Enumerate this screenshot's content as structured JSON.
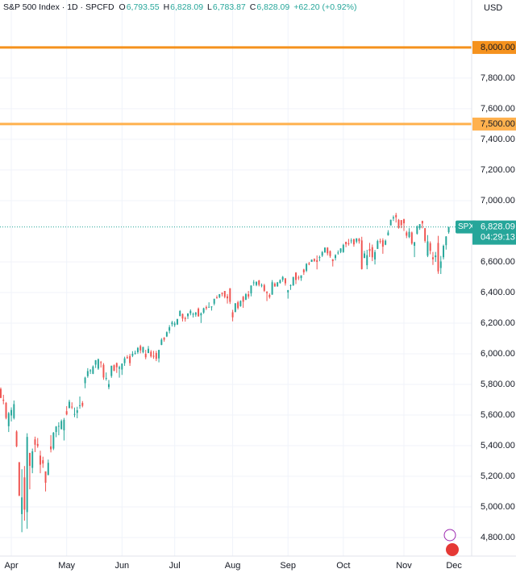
{
  "chart_data": {
    "type": "candlestick",
    "header": {
      "title": "S&P 500 Index · 1D · SPCFD",
      "fields": [
        {
          "key": "O",
          "label": "6,793.55"
        },
        {
          "key": "H",
          "label": "6,828.09"
        },
        {
          "key": "L",
          "label": "6,783.87"
        },
        {
          "key": "C",
          "label": "6,828.09"
        }
      ],
      "change": "+62.20 (+0.92%)"
    },
    "currency": "USD",
    "up_color": "#26a69a",
    "down_color": "#ef5350",
    "grid": true,
    "xlim": [
      -0.3,
      178.7
    ],
    "xticks": [
      {
        "value": 4,
        "label": "Apr"
      },
      {
        "value": 25,
        "label": "May"
      },
      {
        "value": 46,
        "label": "Jun"
      },
      {
        "value": 66,
        "label": "Jul"
      },
      {
        "value": 88,
        "label": "Aug"
      },
      {
        "value": 109,
        "label": "Sep"
      },
      {
        "value": 130,
        "label": "Oct"
      },
      {
        "value": 153,
        "label": "Nov"
      },
      {
        "value": 172,
        "label": "Dec"
      }
    ],
    "ylim": [
      4679,
      8310
    ],
    "yticks": [
      {
        "value": 4800,
        "label": "4,800.00"
      },
      {
        "value": 5000,
        "label": "5,000.00"
      },
      {
        "value": 5200,
        "label": "5,200.00"
      },
      {
        "value": 5400,
        "label": "5,400.00"
      },
      {
        "value": 5600,
        "label": "5,600.00"
      },
      {
        "value": 5800,
        "label": "5,800.00"
      },
      {
        "value": 6000,
        "label": "6,000.00"
      },
      {
        "value": 6200,
        "label": "6,200.00"
      },
      {
        "value": 6400,
        "label": "6,400.00"
      },
      {
        "value": 6600,
        "label": "6,600.00"
      },
      {
        "value": 7000,
        "label": "7,000.00"
      },
      {
        "value": 7200,
        "label": "7,200.00"
      },
      {
        "value": 7400,
        "label": "7,400.00"
      },
      {
        "value": 7600,
        "label": "7,600.00"
      },
      {
        "value": 7800,
        "label": "7,800.00"
      }
    ],
    "hlines": [
      {
        "value": 8000,
        "label": "8,000.00",
        "color": "#f5921e"
      },
      {
        "value": 7500,
        "label": "7,500.00",
        "color": "#ffb14e"
      }
    ],
    "last_price": {
      "name": "SPX",
      "value": 6828.09,
      "label": "6,828.09",
      "countdown": "04:29:13",
      "color": "#26a69a"
    },
    "ohlc": [
      [
        5770,
        5780,
        5710,
        5712
      ],
      [
        5700,
        5732,
        5670,
        5693
      ],
      [
        5679,
        5685,
        5572,
        5581
      ],
      [
        5527,
        5620,
        5489,
        5612
      ],
      [
        5597,
        5650,
        5558,
        5633
      ],
      [
        5580,
        5695,
        5571,
        5671
      ],
      [
        5492,
        5500,
        5390,
        5396
      ],
      [
        5292,
        5293,
        5070,
        5074
      ],
      [
        4953,
        5246,
        4835,
        5062
      ],
      [
        5193,
        5267,
        4910,
        4982
      ],
      [
        4966,
        5481,
        4857,
        5457
      ],
      [
        5353,
        5353,
        5115,
        5268
      ],
      [
        5255,
        5381,
        5220,
        5363
      ],
      [
        5441,
        5459,
        5358,
        5406
      ],
      [
        5411,
        5450,
        5386,
        5397
      ],
      [
        5335,
        5367,
        5220,
        5276
      ],
      [
        5305,
        5328,
        5255,
        5283
      ],
      [
        5232,
        5232,
        5101,
        5158
      ],
      [
        5208,
        5309,
        5207,
        5288
      ],
      [
        5395,
        5469,
        5356,
        5376
      ],
      [
        5381,
        5489,
        5371,
        5485
      ],
      [
        5489,
        5528,
        5455,
        5525
      ],
      [
        5529,
        5553,
        5468,
        5529
      ],
      [
        5508,
        5571,
        5505,
        5561
      ],
      [
        5500,
        5581,
        5434,
        5569
      ],
      [
        5625,
        5658,
        5598,
        5604
      ],
      [
        5645,
        5700,
        5644,
        5687
      ],
      [
        5655,
        5683,
        5639,
        5650
      ],
      [
        5605,
        5649,
        5586,
        5607
      ],
      [
        5614,
        5654,
        5579,
        5631
      ],
      [
        5663,
        5721,
        5641,
        5664
      ],
      [
        5679,
        5691,
        5650,
        5660
      ],
      [
        5808,
        5850,
        5775,
        5844
      ],
      [
        5854,
        5906,
        5843,
        5887
      ],
      [
        5886,
        5900,
        5868,
        5892
      ],
      [
        5869,
        5924,
        5867,
        5917
      ],
      [
        5929,
        5959,
        5907,
        5958
      ],
      [
        5903,
        5969,
        5895,
        5964
      ],
      [
        5945,
        5953,
        5910,
        5940
      ],
      [
        5928,
        5939,
        5830,
        5845
      ],
      [
        5841,
        5878,
        5825,
        5842
      ],
      [
        5782,
        5829,
        5768,
        5802
      ],
      [
        5855,
        5922,
        5843,
        5922
      ],
      [
        5925,
        5930,
        5886,
        5889
      ],
      [
        5939,
        5943,
        5875,
        5912
      ],
      [
        5903,
        5922,
        5844,
        5912
      ],
      [
        5897,
        5937,
        5862,
        5936
      ],
      [
        5939,
        5981,
        5921,
        5970
      ],
      [
        5978,
        5991,
        5967,
        5971
      ],
      [
        5985,
        5999,
        5921,
        5939
      ],
      [
        5987,
        6017,
        5978,
        6000
      ],
      [
        6005,
        6021,
        5994,
        6006
      ],
      [
        6010,
        6044,
        5999,
        6038
      ],
      [
        6050,
        6059,
        6003,
        6022
      ],
      [
        6010,
        6045,
        6003,
        6045
      ],
      [
        6000,
        6026,
        5964,
        5977
      ],
      [
        6005,
        6051,
        6004,
        6033
      ],
      [
        6013,
        6024,
        5975,
        5983
      ],
      [
        5987,
        6019,
        5967,
        5981
      ],
      [
        6005,
        6019,
        5952,
        5967
      ],
      [
        5970,
        6026,
        5944,
        6025
      ],
      [
        6058,
        6102,
        6056,
        6092
      ],
      [
        6104,
        6109,
        6079,
        6092
      ],
      [
        6113,
        6146,
        6109,
        6141
      ],
      [
        6151,
        6187,
        6133,
        6173
      ],
      [
        6193,
        6215,
        6178,
        6205
      ],
      [
        6187,
        6211,
        6175,
        6198
      ],
      [
        6191,
        6228,
        6188,
        6227
      ],
      [
        6247,
        6285,
        6244,
        6279
      ],
      [
        6260,
        6263,
        6211,
        6230
      ],
      [
        6233,
        6243,
        6210,
        6226
      ],
      [
        6245,
        6265,
        6227,
        6263
      ],
      [
        6264,
        6290,
        6251,
        6280
      ],
      [
        6256,
        6269,
        6237,
        6260
      ],
      [
        6255,
        6273,
        6242,
        6269
      ],
      [
        6295,
        6302,
        6243,
        6244
      ],
      [
        6251,
        6270,
        6201,
        6264
      ],
      [
        6269,
        6301,
        6261,
        6297
      ],
      [
        6305,
        6315,
        6286,
        6297
      ],
      [
        6304,
        6336,
        6303,
        6306
      ],
      [
        6307,
        6310,
        6282,
        6309
      ],
      [
        6327,
        6359,
        6316,
        6359
      ],
      [
        6368,
        6381,
        6360,
        6363
      ],
      [
        6370,
        6390,
        6363,
        6389
      ],
      [
        6397,
        6401,
        6375,
        6390
      ],
      [
        6410,
        6410,
        6362,
        6371
      ],
      [
        6375,
        6390,
        6328,
        6362
      ],
      [
        6428,
        6428,
        6325,
        6339
      ],
      [
        6271,
        6287,
        6212,
        6238
      ],
      [
        6272,
        6330,
        6272,
        6330
      ],
      [
        6336,
        6346,
        6289,
        6299
      ],
      [
        6311,
        6349,
        6307,
        6345
      ],
      [
        6372,
        6378,
        6300,
        6340
      ],
      [
        6353,
        6396,
        6350,
        6389
      ],
      [
        6389,
        6410,
        6360,
        6374
      ],
      [
        6394,
        6446,
        6375,
        6446
      ],
      [
        6462,
        6481,
        6444,
        6466
      ],
      [
        6449,
        6473,
        6441,
        6469
      ],
      [
        6479,
        6482,
        6440,
        6450
      ],
      [
        6446,
        6459,
        6434,
        6449
      ],
      [
        6448,
        6457,
        6404,
        6411
      ],
      [
        6404,
        6409,
        6344,
        6396
      ],
      [
        6384,
        6394,
        6360,
        6370
      ],
      [
        6386,
        6481,
        6385,
        6467
      ],
      [
        6458,
        6466,
        6438,
        6439
      ],
      [
        6441,
        6469,
        6437,
        6466
      ],
      [
        6463,
        6486,
        6458,
        6481
      ],
      [
        6483,
        6508,
        6470,
        6502
      ],
      [
        6492,
        6495,
        6445,
        6460
      ],
      [
        6401,
        6416,
        6360,
        6416
      ],
      [
        6443,
        6453,
        6417,
        6448
      ],
      [
        6447,
        6502,
        6443,
        6502
      ],
      [
        6530,
        6533,
        6455,
        6482
      ],
      [
        6498,
        6511,
        6481,
        6495
      ],
      [
        6494,
        6513,
        6476,
        6512
      ],
      [
        6550,
        6555,
        6515,
        6532
      ],
      [
        6542,
        6592,
        6533,
        6587
      ],
      [
        6590,
        6600,
        6578,
        6584
      ],
      [
        6600,
        6616,
        6600,
        6615
      ],
      [
        6619,
        6623,
        6600,
        6606
      ],
      [
        6611,
        6642,
        6551,
        6600
      ],
      [
        6627,
        6641,
        6604,
        6631
      ],
      [
        6641,
        6671,
        6632,
        6664
      ],
      [
        6662,
        6695,
        6659,
        6693
      ],
      [
        6693,
        6696,
        6642,
        6656
      ],
      [
        6670,
        6675,
        6627,
        6638
      ],
      [
        6617,
        6619,
        6570,
        6605
      ],
      [
        6625,
        6650,
        6609,
        6644
      ],
      [
        6661,
        6675,
        6647,
        6661
      ],
      [
        6665,
        6689,
        6657,
        6688
      ],
      [
        6664,
        6718,
        6659,
        6711
      ],
      [
        6731,
        6732,
        6696,
        6715
      ],
      [
        6722,
        6750,
        6706,
        6716
      ],
      [
        6740,
        6754,
        6720,
        6740
      ],
      [
        6748,
        6752,
        6699,
        6714
      ],
      [
        6732,
        6754,
        6721,
        6754
      ],
      [
        6751,
        6756,
        6719,
        6735
      ],
      [
        6740,
        6764,
        6550,
        6553
      ],
      [
        6625,
        6672,
        6625,
        6655
      ],
      [
        6578,
        6679,
        6552,
        6644
      ],
      [
        6684,
        6724,
        6632,
        6671
      ],
      [
        6696,
        6713,
        6605,
        6630
      ],
      [
        6616,
        6678,
        6583,
        6664
      ],
      [
        6685,
        6745,
        6684,
        6736
      ],
      [
        6736,
        6752,
        6719,
        6735
      ],
      [
        6741,
        6754,
        6653,
        6699
      ],
      [
        6712,
        6746,
        6709,
        6738
      ],
      [
        6774,
        6807,
        6771,
        6792
      ],
      [
        6838,
        6876,
        6838,
        6875
      ],
      [
        6884,
        6903,
        6867,
        6891
      ],
      [
        6906,
        6920,
        6857,
        6891
      ],
      [
        6874,
        6880,
        6817,
        6822
      ],
      [
        6873,
        6873,
        6820,
        6840
      ],
      [
        6878,
        6882,
        6802,
        6852
      ],
      [
        6792,
        6803,
        6755,
        6771
      ],
      [
        6762,
        6820,
        6755,
        6796
      ],
      [
        6792,
        6798,
        6712,
        6720
      ],
      [
        6705,
        6730,
        6631,
        6729
      ],
      [
        6784,
        6838,
        6778,
        6832
      ],
      [
        6820,
        6847,
        6809,
        6846
      ],
      [
        6867,
        6869,
        6819,
        6851
      ],
      [
        6820,
        6821,
        6725,
        6737
      ],
      [
        6640,
        6775,
        6631,
        6734
      ],
      [
        6722,
        6734,
        6650,
        6672
      ],
      [
        6630,
        6665,
        6580,
        6617
      ],
      [
        6631,
        6665,
        6600,
        6642
      ],
      [
        6724,
        6770,
        6522,
        6538
      ],
      [
        6560,
        6639,
        6521,
        6603
      ],
      [
        6630,
        6713,
        6616,
        6705
      ],
      [
        6709,
        6768,
        6680,
        6766
      ],
      [
        6793.55,
        6828.09,
        6783.87,
        6828.09
      ]
    ]
  }
}
